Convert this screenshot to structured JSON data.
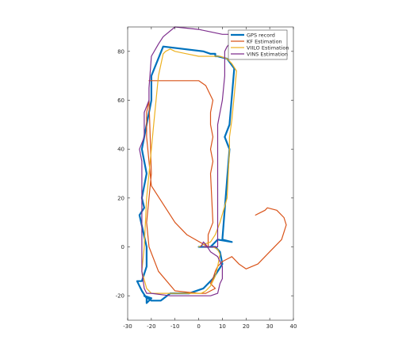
{
  "chart_data": {
    "type": "line",
    "title": "",
    "xlabel": "",
    "ylabel": "",
    "xlim": [
      -30,
      40
    ],
    "ylim": [
      -30,
      90
    ],
    "xticks": [
      -30,
      -20,
      -10,
      0,
      10,
      20,
      30,
      40
    ],
    "yticks": [
      -20,
      0,
      20,
      40,
      60,
      80
    ],
    "grid": false,
    "legend_position": "top-right",
    "series": [
      {
        "name": "GPS record",
        "color": "#0072BD",
        "width": 2.2,
        "x": [
          0,
          5,
          8,
          14,
          10,
          13,
          11,
          13,
          15,
          12,
          8,
          7,
          7,
          5,
          2,
          -15,
          -20,
          -20,
          -24,
          -22,
          -24,
          -23,
          -25,
          -22,
          -22,
          -24,
          -26,
          -24,
          -22,
          -22,
          -20,
          -23,
          -20,
          -16,
          -12,
          -4,
          2,
          6,
          10,
          9,
          7,
          5,
          3,
          0
        ],
        "y": [
          0,
          0,
          3,
          2,
          3,
          40,
          45,
          50,
          73,
          77,
          78,
          78,
          79,
          79,
          80,
          82,
          70,
          60,
          40,
          30,
          20,
          16,
          13,
          0,
          -8,
          -14,
          -14,
          -18,
          -21,
          -23,
          -21,
          -20,
          -22,
          -22,
          -19,
          -19,
          -17,
          -13,
          -7,
          -2,
          0,
          0,
          0,
          0
        ]
      },
      {
        "name": "KF Estimation",
        "color": "#D95319",
        "width": 1.2,
        "x": [
          -21,
          -20,
          -10,
          0,
          3,
          6,
          5,
          5,
          6,
          5,
          6,
          5,
          6,
          4,
          4,
          -5,
          -10,
          -20,
          -22,
          -22,
          -21,
          -20,
          -22,
          -21,
          -17,
          -10,
          0,
          3,
          7,
          5,
          6,
          7,
          8,
          10,
          12,
          14,
          15,
          17,
          20,
          25,
          30,
          35,
          37,
          36,
          33,
          29,
          28,
          26,
          24
        ],
        "y": [
          68,
          68,
          68,
          68,
          66,
          60,
          55,
          50,
          45,
          40,
          35,
          30,
          10,
          5,
          0,
          5,
          10,
          25,
          45,
          55,
          60,
          30,
          10,
          0,
          -10,
          -18,
          -19,
          -19,
          -17,
          -15,
          -13,
          -10,
          -8,
          -6,
          -5,
          -4,
          -5,
          -7,
          -9,
          -7,
          -2,
          3,
          9,
          12,
          15,
          16,
          15,
          14,
          13
        ]
      },
      {
        "name": "VIILO Estimation",
        "color": "#EDB120",
        "width": 1.2,
        "x": [
          2,
          6,
          8,
          9,
          8,
          7,
          5,
          3,
          1,
          1,
          -20,
          -22,
          -24,
          -23,
          -22,
          -20,
          -19,
          -18,
          -17,
          -15,
          -14,
          -12,
          -10,
          -5,
          0,
          5,
          9,
          12,
          14,
          16,
          15,
          14,
          13,
          13,
          12,
          9,
          7,
          5,
          2,
          0
        ],
        "y": [
          0,
          0,
          -1,
          -3,
          -8,
          -12,
          -16,
          -18,
          -19,
          -19,
          -19,
          -17,
          -10,
          0,
          20,
          40,
          50,
          60,
          70,
          79,
          80,
          81,
          80,
          79,
          78,
          78,
          78,
          77,
          75,
          72,
          62,
          52,
          45,
          40,
          20,
          10,
          5,
          2,
          1,
          0
        ]
      },
      {
        "name": "VINS Estimation",
        "color": "#7E2F8E",
        "width": 1.2,
        "x": [
          2,
          7,
          8,
          8,
          8,
          8,
          10,
          11,
          11,
          11,
          11,
          11,
          11,
          12,
          14,
          15,
          14,
          13,
          12,
          10,
          5,
          0,
          -10,
          -15,
          -17,
          -20,
          -21,
          -21,
          -23,
          -23,
          -25,
          -24,
          -24,
          -24,
          -23,
          -22,
          -20,
          -12,
          -3,
          5,
          8,
          9,
          10,
          10,
          8,
          5,
          3,
          2,
          1
        ],
        "y": [
          0,
          0,
          0,
          30,
          40,
          50,
          60,
          70,
          72,
          74,
          76,
          76,
          80,
          82,
          84,
          85,
          86,
          87,
          87,
          87,
          88,
          89,
          90,
          86,
          83,
          78,
          65,
          60,
          55,
          45,
          40,
          35,
          15,
          -10,
          -17,
          -19,
          -19,
          -20,
          -20,
          -20,
          -19,
          -15,
          -13,
          -8,
          -4,
          -2,
          1,
          2,
          0
        ]
      }
    ]
  }
}
